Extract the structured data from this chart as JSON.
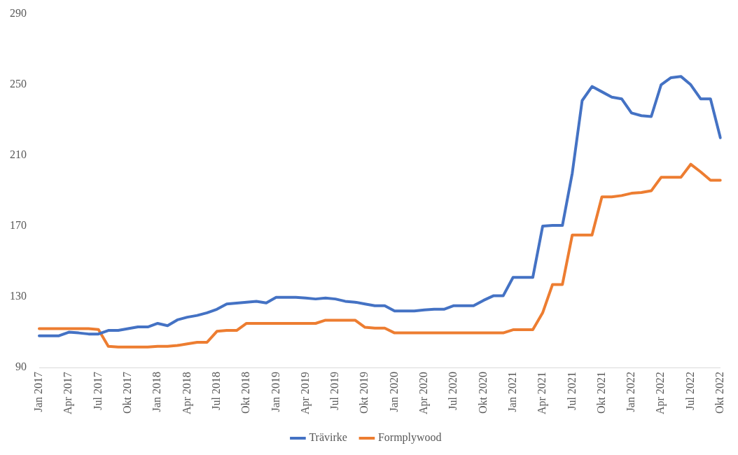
{
  "chart_data": {
    "type": "line",
    "categories": [
      "Jan 2017",
      null,
      null,
      "Apr 2017",
      null,
      null,
      "Jul 2017",
      null,
      null,
      "Okt 2017",
      null,
      null,
      "Jan 2018",
      null,
      null,
      "Apr 2018",
      null,
      null,
      "Jul 2018",
      null,
      null,
      "Okt 2018",
      null,
      null,
      "Jan 2019",
      null,
      null,
      "Apr 2019",
      null,
      null,
      "Jul 2019",
      null,
      null,
      "Okt 2019",
      null,
      null,
      "Jan 2020",
      null,
      null,
      "Apr 2020",
      null,
      null,
      "Jul 2020",
      null,
      null,
      "Okt 2020",
      null,
      null,
      "Jan 2021",
      null,
      null,
      "Apr 2021",
      null,
      null,
      "Jul 2021",
      null,
      null,
      "Okt 2021",
      null,
      null,
      "Jan 2022",
      null,
      null,
      "Apr 2022",
      null,
      null,
      "Jul 2022",
      null,
      null,
      "Okt 2022"
    ],
    "series": [
      {
        "name": "Trävirke",
        "color": "#4472c4",
        "values": [
          108,
          108,
          108,
          110,
          109.6,
          109,
          109,
          111,
          111,
          112,
          113,
          113,
          115,
          113.7,
          117,
          118.5,
          119.5,
          121,
          123,
          126,
          126.5,
          127,
          127.5,
          126.6,
          129.7,
          129.7,
          129.7,
          129.3,
          128.8,
          129.3,
          128.8,
          127.5,
          127,
          126,
          125,
          125,
          122,
          122,
          122,
          122.6,
          123,
          123,
          125,
          125,
          125,
          128,
          130.6,
          130.6,
          141,
          141,
          141,
          170,
          170.4,
          170.4,
          200,
          241,
          249,
          246,
          243,
          242,
          234,
          232.5,
          232,
          250,
          254,
          254.7,
          250,
          242,
          242,
          220
        ]
      },
      {
        "name": "Formplywood",
        "color": "#ed7d31",
        "values": [
          112,
          112,
          112,
          112,
          112,
          112,
          111.5,
          102,
          101.6,
          101.6,
          101.6,
          101.6,
          102,
          102,
          102.5,
          103.4,
          104.3,
          104.3,
          110.5,
          111,
          111,
          115,
          115,
          115,
          115,
          115,
          115,
          115,
          115,
          116.8,
          116.8,
          116.8,
          116.8,
          112.8,
          112.3,
          112.3,
          109.6,
          109.6,
          109.6,
          109.6,
          109.6,
          109.6,
          109.6,
          109.6,
          109.6,
          109.6,
          109.6,
          109.6,
          111.4,
          111.4,
          111.4,
          121,
          137,
          137,
          165,
          165,
          165,
          186.6,
          186.6,
          187.3,
          188.6,
          189,
          190,
          197.6,
          197.6,
          197.6,
          205,
          200.7,
          196,
          196
        ]
      }
    ],
    "ylim": [
      90,
      290
    ],
    "yticks": [
      90,
      130,
      170,
      210,
      250,
      290
    ],
    "grid": false,
    "legend": "bottom",
    "marker": "none",
    "line_style": "solid"
  }
}
